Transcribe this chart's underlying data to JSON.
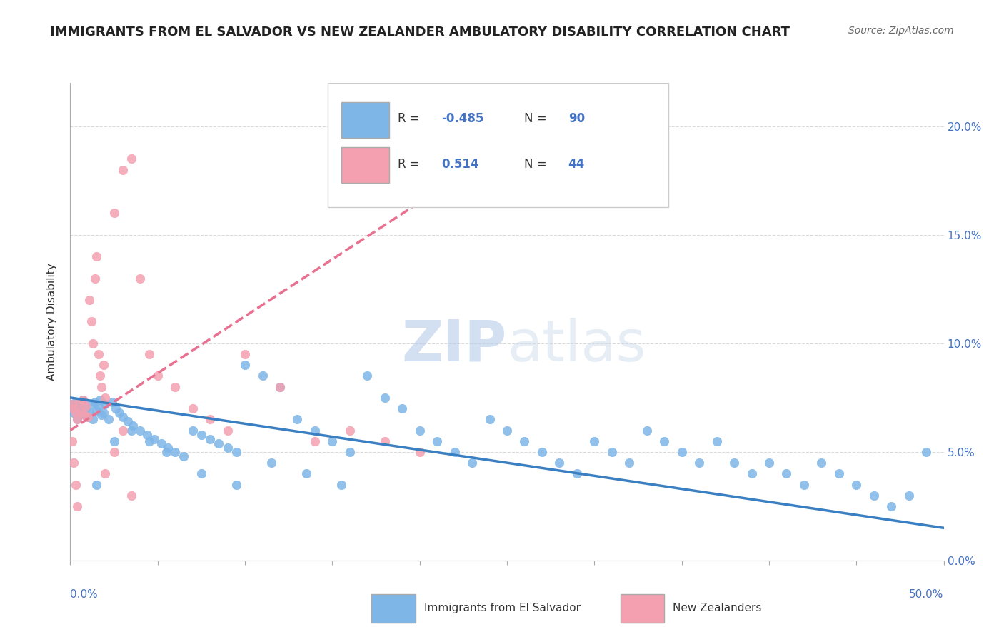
{
  "title": "IMMIGRANTS FROM EL SALVADOR VS NEW ZEALANDER AMBULATORY DISABILITY CORRELATION CHART",
  "source": "Source: ZipAtlas.com",
  "ylabel": "Ambulatory Disability",
  "legend_blue_r": "-0.485",
  "legend_blue_n": "90",
  "legend_pink_r": "0.514",
  "legend_pink_n": "44",
  "color_blue": "#7EB6E8",
  "color_pink": "#F4A0B0",
  "color_blue_dark": "#3A7FC1",
  "color_pink_dark": "#E87090",
  "watermark_zip": "ZIP",
  "watermark_atlas": "atlas",
  "blue_scatter_x": [
    0.001,
    0.002,
    0.003,
    0.004,
    0.005,
    0.006,
    0.007,
    0.008,
    0.009,
    0.01,
    0.011,
    0.012,
    0.013,
    0.014,
    0.015,
    0.016,
    0.017,
    0.018,
    0.019,
    0.02,
    0.022,
    0.024,
    0.026,
    0.028,
    0.03,
    0.033,
    0.036,
    0.04,
    0.044,
    0.048,
    0.052,
    0.056,
    0.06,
    0.065,
    0.07,
    0.075,
    0.08,
    0.085,
    0.09,
    0.095,
    0.1,
    0.11,
    0.12,
    0.13,
    0.14,
    0.15,
    0.16,
    0.17,
    0.18,
    0.19,
    0.2,
    0.21,
    0.22,
    0.23,
    0.24,
    0.25,
    0.26,
    0.27,
    0.28,
    0.29,
    0.3,
    0.31,
    0.32,
    0.33,
    0.34,
    0.35,
    0.36,
    0.37,
    0.38,
    0.39,
    0.4,
    0.41,
    0.42,
    0.43,
    0.44,
    0.45,
    0.46,
    0.47,
    0.48,
    0.49,
    0.015,
    0.025,
    0.035,
    0.045,
    0.055,
    0.075,
    0.095,
    0.115,
    0.135,
    0.155
  ],
  "blue_scatter_y": [
    0.072,
    0.068,
    0.073,
    0.065,
    0.071,
    0.069,
    0.074,
    0.067,
    0.07,
    0.066,
    0.068,
    0.072,
    0.065,
    0.073,
    0.069,
    0.071,
    0.074,
    0.067,
    0.068,
    0.072,
    0.065,
    0.073,
    0.07,
    0.068,
    0.066,
    0.064,
    0.062,
    0.06,
    0.058,
    0.056,
    0.054,
    0.052,
    0.05,
    0.048,
    0.06,
    0.058,
    0.056,
    0.054,
    0.052,
    0.05,
    0.09,
    0.085,
    0.08,
    0.065,
    0.06,
    0.055,
    0.05,
    0.085,
    0.075,
    0.07,
    0.06,
    0.055,
    0.05,
    0.045,
    0.065,
    0.06,
    0.055,
    0.05,
    0.045,
    0.04,
    0.055,
    0.05,
    0.045,
    0.06,
    0.055,
    0.05,
    0.045,
    0.055,
    0.045,
    0.04,
    0.045,
    0.04,
    0.035,
    0.045,
    0.04,
    0.035,
    0.03,
    0.025,
    0.03,
    0.05,
    0.035,
    0.055,
    0.06,
    0.055,
    0.05,
    0.04,
    0.035,
    0.045,
    0.04,
    0.035
  ],
  "pink_scatter_x": [
    0.001,
    0.002,
    0.003,
    0.004,
    0.005,
    0.006,
    0.007,
    0.008,
    0.009,
    0.01,
    0.011,
    0.012,
    0.013,
    0.014,
    0.015,
    0.016,
    0.017,
    0.018,
    0.019,
    0.02,
    0.025,
    0.03,
    0.035,
    0.04,
    0.045,
    0.05,
    0.06,
    0.07,
    0.08,
    0.09,
    0.1,
    0.12,
    0.14,
    0.16,
    0.18,
    0.2,
    0.02,
    0.025,
    0.03,
    0.035,
    0.001,
    0.002,
    0.003,
    0.004
  ],
  "pink_scatter_y": [
    0.072,
    0.07,
    0.068,
    0.065,
    0.073,
    0.069,
    0.074,
    0.067,
    0.071,
    0.066,
    0.12,
    0.11,
    0.1,
    0.13,
    0.14,
    0.095,
    0.085,
    0.08,
    0.09,
    0.075,
    0.16,
    0.18,
    0.185,
    0.13,
    0.095,
    0.085,
    0.08,
    0.07,
    0.065,
    0.06,
    0.095,
    0.08,
    0.055,
    0.06,
    0.055,
    0.05,
    0.04,
    0.05,
    0.06,
    0.03,
    0.055,
    0.045,
    0.035,
    0.025
  ],
  "xlim": [
    0.0,
    0.5
  ],
  "ylim": [
    0.0,
    0.22
  ],
  "blue_trend_x": [
    0.0,
    0.5
  ],
  "blue_trend_y": [
    0.075,
    0.015
  ],
  "pink_trend_x": [
    0.0,
    0.2
  ],
  "pink_trend_y": [
    0.06,
    0.165
  ]
}
